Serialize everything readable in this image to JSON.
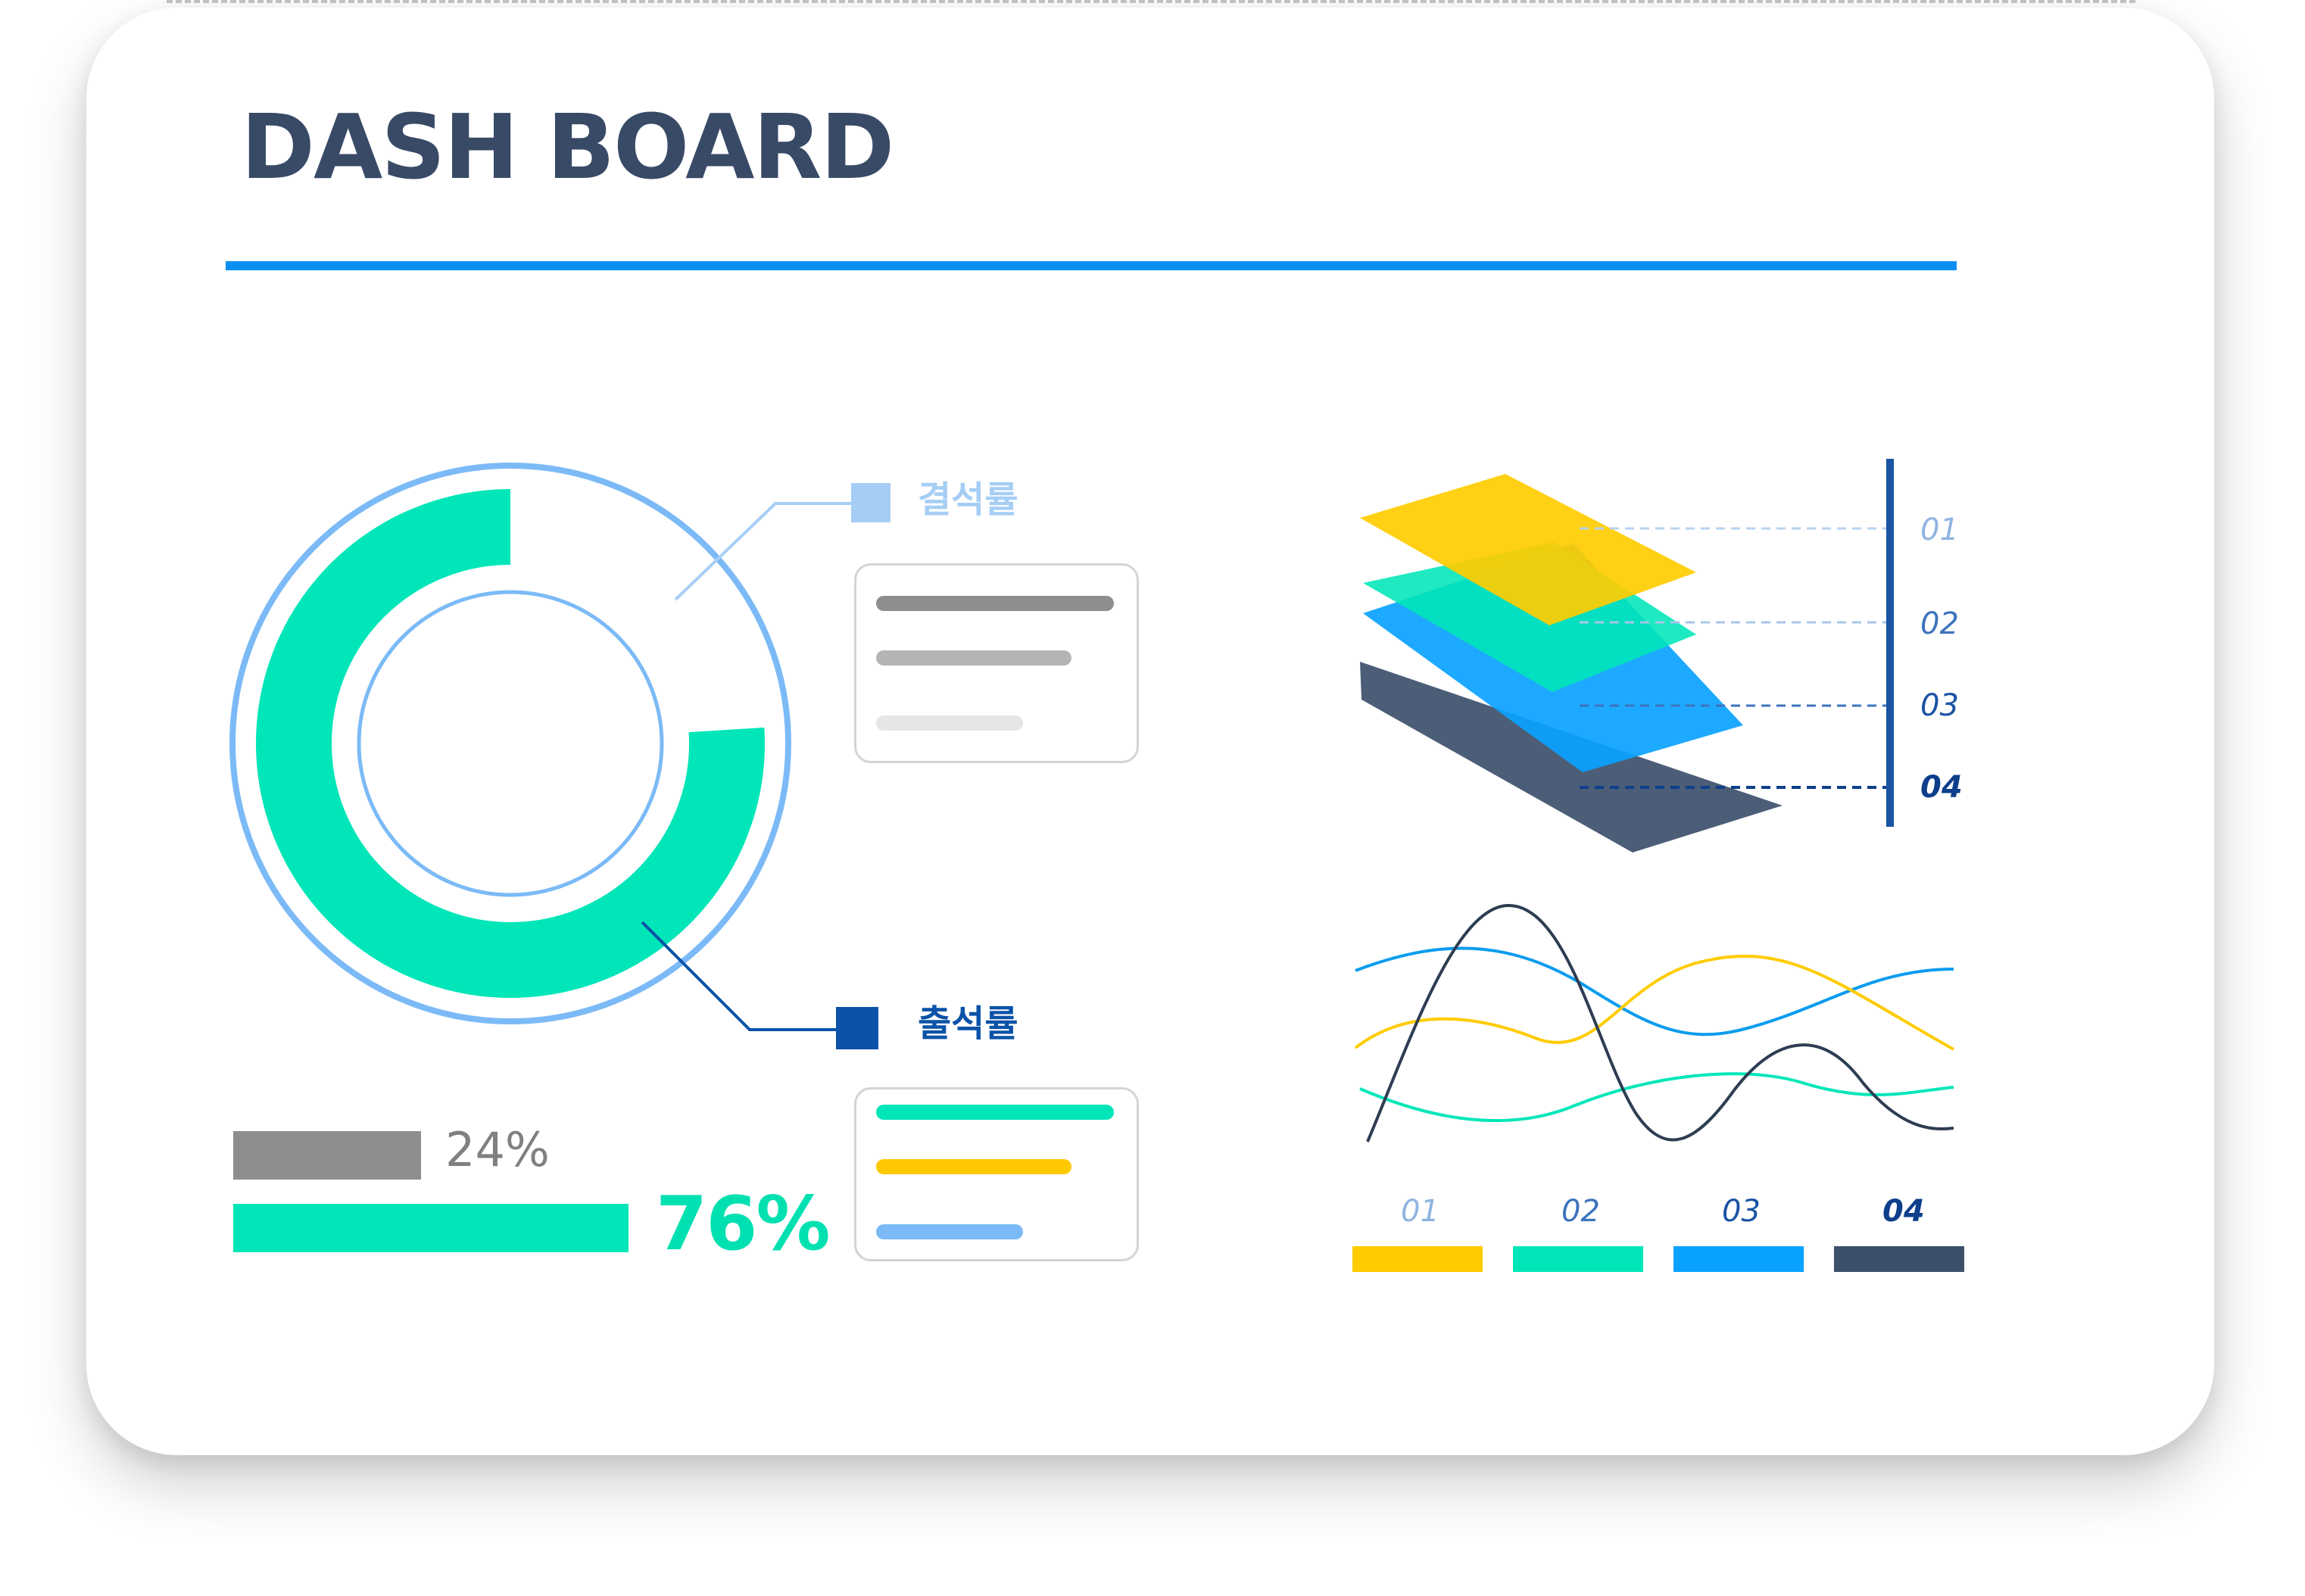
{
  "dashboard": {
    "title": "DASH BOARD",
    "accent_color": "#0b8ff0",
    "title_color": "#384a66"
  },
  "donut": {
    "absence_label": "결석률",
    "attendance_label": "출석률",
    "absence_percent": "24%",
    "attendance_percent": "76%",
    "absence_value": 24,
    "attendance_value": 76,
    "ring_color": "#7bbaf6",
    "arc_color": "#00e6b8",
    "absence_marker_color": "#a6cef5",
    "attendance_marker_color": "#0b52a8"
  },
  "bars": {
    "absence_color": "#8e8e8e",
    "attendance_color": "#00e6b8"
  },
  "info_boxes": {
    "top_colors": [
      "#8e8e8e",
      "#b4b4b4",
      "#e6e6e6"
    ],
    "bottom_colors": [
      "#00e6b8",
      "#ffc800",
      "#7bbaf6"
    ]
  },
  "layers": {
    "ticks": [
      "01",
      "02",
      "03",
      "04"
    ],
    "colors": [
      "#ffcc00",
      "#00e6b8",
      "#0aa2ff",
      "#3d506b"
    ],
    "tick_colors": [
      "#8fb4e0",
      "#3e73bd",
      "#1a53a4",
      "#0e3f8c"
    ]
  },
  "line_chart": {
    "legend": [
      "01",
      "02",
      "03",
      "04"
    ],
    "legend_colors": [
      "#ffcc00",
      "#00e6b8",
      "#0aa2ff",
      "#3d506b"
    ],
    "legend_text_colors": [
      "#8fb4e0",
      "#3e73bd",
      "#1a53a4",
      "#0e3f8c"
    ],
    "line_colors": [
      "#ffcc00",
      "#00e6b8",
      "#0a9cef",
      "#2e3d52"
    ]
  }
}
